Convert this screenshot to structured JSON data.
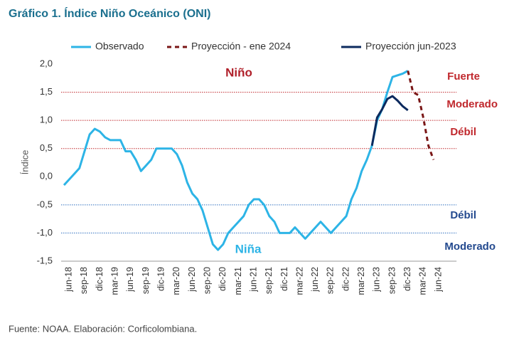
{
  "chart_data": {
    "type": "line",
    "title": "Gráfico 1. Índice Niño Oceánico (ONI)",
    "y_label": "Índice",
    "source": "Fuente: NOAA. Elaboración: Corficolombiana.",
    "categories": [
      null,
      "jun-18",
      null,
      null,
      "sep-18",
      null,
      null,
      "dic-18",
      null,
      null,
      "mar-19",
      null,
      null,
      "jun-19",
      null,
      null,
      "sep-19",
      null,
      null,
      "dic-19",
      null,
      null,
      "mar-20",
      null,
      null,
      "jun-20",
      null,
      null,
      "sep-20",
      null,
      null,
      "dic-20",
      null,
      null,
      "mar-21",
      null,
      null,
      "jun-21",
      null,
      null,
      "sep-21",
      null,
      null,
      "dic-21",
      null,
      null,
      "mar-22",
      null,
      null,
      "jun-22",
      null,
      null,
      "sep-22",
      null,
      null,
      "dic-22",
      null,
      null,
      "mar-23",
      null,
      null,
      "jun-23",
      null,
      null,
      "sep-23",
      null,
      null,
      "dic-23",
      null,
      null,
      "mar-24",
      null,
      null,
      "jun-24"
    ],
    "series": [
      {
        "name": "Observado",
        "color": "#2db4e6",
        "dash": false,
        "values": [
          -0.15,
          -0.05,
          0.05,
          0.15,
          0.45,
          0.75,
          0.85,
          0.8,
          0.7,
          0.65,
          0.65,
          0.65,
          0.45,
          0.45,
          0.3,
          0.1,
          0.2,
          0.3,
          0.5,
          0.5,
          0.5,
          0.5,
          0.4,
          0.2,
          -0.1,
          -0.3,
          -0.4,
          -0.6,
          -0.9,
          -1.2,
          -1.3,
          -1.2,
          -1.0,
          -0.9,
          -0.8,
          -0.7,
          -0.5,
          -0.4,
          -0.4,
          -0.5,
          -0.7,
          -0.8,
          -1.0,
          -1.0,
          -1.0,
          -0.9,
          -1.0,
          -1.1,
          -1.0,
          -0.9,
          -0.8,
          -0.9,
          -1.0,
          -0.9,
          -0.8,
          -0.7,
          -0.4,
          -0.2,
          0.1,
          0.3,
          0.55,
          1.0,
          1.2,
          1.5,
          1.77,
          1.8,
          1.83,
          1.88,
          null,
          null,
          null,
          null,
          null,
          null
        ]
      },
      {
        "name": "Proyección - ene 2024",
        "color": "#7a1616",
        "dash": true,
        "values": [
          null,
          null,
          null,
          null,
          null,
          null,
          null,
          null,
          null,
          null,
          null,
          null,
          null,
          null,
          null,
          null,
          null,
          null,
          null,
          null,
          null,
          null,
          null,
          null,
          null,
          null,
          null,
          null,
          null,
          null,
          null,
          null,
          null,
          null,
          null,
          null,
          null,
          null,
          null,
          null,
          null,
          null,
          null,
          null,
          null,
          null,
          null,
          null,
          null,
          null,
          null,
          null,
          null,
          null,
          null,
          null,
          null,
          null,
          null,
          null,
          null,
          null,
          null,
          null,
          null,
          null,
          null,
          1.88,
          1.5,
          1.45,
          1.05,
          0.55,
          0.3,
          null
        ]
      },
      {
        "name": "Proyección jun-2023",
        "color": "#0c2a5e",
        "dash": false,
        "values": [
          null,
          null,
          null,
          null,
          null,
          null,
          null,
          null,
          null,
          null,
          null,
          null,
          null,
          null,
          null,
          null,
          null,
          null,
          null,
          null,
          null,
          null,
          null,
          null,
          null,
          null,
          null,
          null,
          null,
          null,
          null,
          null,
          null,
          null,
          null,
          null,
          null,
          null,
          null,
          null,
          null,
          null,
          null,
          null,
          null,
          null,
          null,
          null,
          null,
          null,
          null,
          null,
          null,
          null,
          null,
          null,
          null,
          null,
          null,
          null,
          0.55,
          1.05,
          1.2,
          1.38,
          1.43,
          1.35,
          1.25,
          1.18,
          null,
          null,
          null,
          null,
          null,
          null
        ]
      }
    ],
    "ylim": [
      -1.5,
      2.0
    ],
    "yticks": [
      {
        "value": 2.0,
        "label": "2,0"
      },
      {
        "value": 1.5,
        "label": "1,5"
      },
      {
        "value": 1.0,
        "label": "1,0"
      },
      {
        "value": 0.5,
        "label": "0,5"
      },
      {
        "value": 0.0,
        "label": "0,0"
      },
      {
        "value": -0.5,
        "label": "-0,5"
      },
      {
        "value": -1.0,
        "label": "-1,0"
      },
      {
        "value": -1.5,
        "label": "-1,5"
      }
    ],
    "thresholds": [
      {
        "value": 1.5,
        "color": "#c0282d"
      },
      {
        "value": 1.0,
        "color": "#c0282d"
      },
      {
        "value": 0.5,
        "color": "#c0282d"
      },
      {
        "value": -0.5,
        "color": "#2e6fc0"
      },
      {
        "value": -1.0,
        "color": "#2e6fc0"
      },
      {
        "value": -1.5,
        "color": "#2e6fc0"
      }
    ],
    "annotations": [
      {
        "text": "Niño",
        "color": "#b0202a"
      },
      {
        "text": "Fuerte",
        "color": "#c0282d"
      },
      {
        "text": "Moderado",
        "color": "#c0282d"
      },
      {
        "text": "Débil",
        "color": "#c0282d"
      },
      {
        "text": "Débil",
        "color": "#244a8f"
      },
      {
        "text": "Moderado",
        "color": "#244a8f"
      },
      {
        "text": "Niña",
        "color": "#2db4e6"
      }
    ]
  }
}
